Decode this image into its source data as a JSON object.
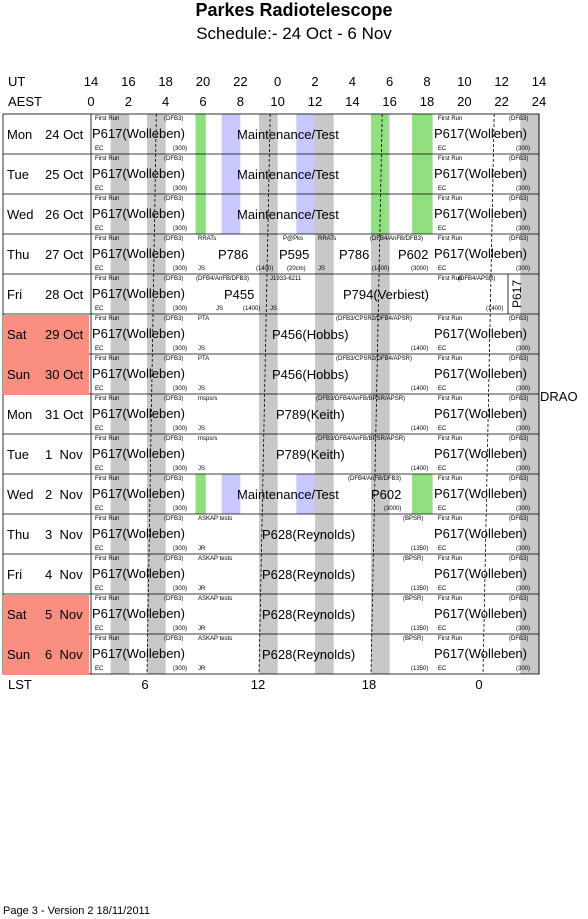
{
  "title": "Parkes Radiotelescope",
  "subtitle": "Schedule:- 24 Oct - 6  Nov",
  "axes": {
    "ut_label": "UT",
    "aest_label": "AEST",
    "lst_label": "LST",
    "ut_ticks": [
      "14",
      "16",
      "18",
      "20",
      "22",
      "0",
      "2",
      "4",
      "6",
      "8",
      "10",
      "12",
      "14"
    ],
    "aest_ticks": [
      "0",
      "2",
      "4",
      "6",
      "8",
      "10",
      "12",
      "14",
      "16",
      "18",
      "20",
      "22",
      "24"
    ],
    "lst_ticks": [
      "6",
      "12",
      "18",
      "0"
    ]
  },
  "days": [
    {
      "dow": "Mon",
      "date": "24 Oct",
      "weekend": false
    },
    {
      "dow": "Tue",
      "date": "25 Oct",
      "weekend": false
    },
    {
      "dow": "Wed",
      "date": "26 Oct",
      "weekend": false
    },
    {
      "dow": "Thu",
      "date": "27 Oct",
      "weekend": false
    },
    {
      "dow": "Fri",
      "date": "28 Oct",
      "weekend": false
    },
    {
      "dow": "Sat",
      "date": "29 Oct",
      "weekend": true
    },
    {
      "dow": "Sun",
      "date": "30 Oct",
      "weekend": true
    },
    {
      "dow": "Mon",
      "date": "31 Oct",
      "weekend": false
    },
    {
      "dow": "Tue",
      "date": "1  Nov",
      "weekend": false
    },
    {
      "dow": "Wed",
      "date": "2  Nov",
      "weekend": false
    },
    {
      "dow": "Thu",
      "date": "3  Nov",
      "weekend": false
    },
    {
      "dow": "Fri",
      "date": "4  Nov",
      "weekend": false
    },
    {
      "dow": "Sat",
      "date": "5  Nov",
      "weekend": true
    },
    {
      "dow": "Sun",
      "date": "6  Nov",
      "weekend": true
    }
  ],
  "drao": "DRAO",
  "p617_vertical": "P617",
  "colors": {
    "weekend": "#fa8e80",
    "grey": "#c8c8c8",
    "green": "#90e080",
    "lavender": "#c8c8ff"
  },
  "footer": "Page 3 - Version 2  18/11/2011",
  "labels": {
    "first_run": "First Run",
    "dfb3": "(DFB3)",
    "ec": "EC",
    "s300": "(300)",
    "p617": "P617(Wolleben)",
    "maint": "Maintenance/Test",
    "rrats": "RRATs",
    "p786": "P786",
    "s1400": "(1400)",
    "js": "JS",
    "ppks": "P@Pks",
    "p595": "P595",
    "s20cm": "(20cm)",
    "dfb4anfb": "(DFB4/AnFB/DFB3)",
    "p602": "P602",
    "s3000": "(3000)",
    "dfb4anfb2": "(DFB4/AnFB/DFB3)",
    "p455": "P455",
    "j1933": "J1933-6211",
    "p794": "P794(Verbiest)",
    "dfb4apsr": "(DFB4/APSR)",
    "pta": "PTA",
    "p456": "P456(Hobbs)",
    "dfb3cpsr": "(DFB3/CPSR2/DFB4/APSR)",
    "mspsrs": "mspsrs",
    "p789": "P789(Keith)",
    "dfb3dfb4": "(DFB3/DFB4/AnFB/BPSR/APSR)",
    "dfb4anfbdfb3": "(DFB4/AnFB/DFB3)",
    "askap": "ASKAP tests",
    "jr": "JR",
    "p628": "P628(Reynolds)",
    "bpsr": "(BPSR)",
    "s1350": "(1350)"
  }
}
